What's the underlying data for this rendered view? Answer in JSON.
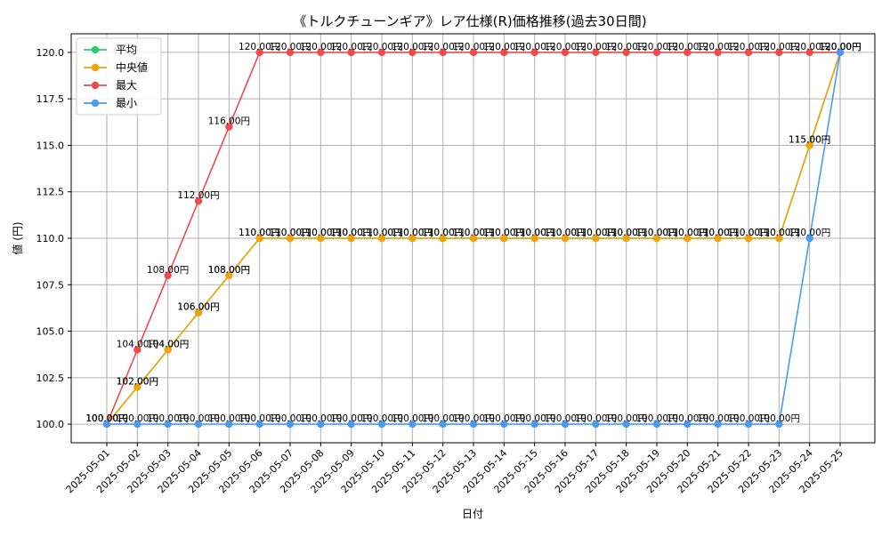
{
  "chart_data": {
    "type": "line",
    "title": "《トルクチューンギア》レア仕様(R)価格推移(過去30日間)",
    "xlabel": "日付",
    "ylabel": "値 (円)",
    "ylim": [
      99,
      121
    ],
    "yticks": [
      100.0,
      102.5,
      105.0,
      107.5,
      110.0,
      112.5,
      115.0,
      117.5,
      120.0
    ],
    "grid": true,
    "legend_position": "top-left",
    "categories": [
      "2025-05-01",
      "2025-05-02",
      "2025-05-03",
      "2025-05-04",
      "2025-05-05",
      "2025-05-06",
      "2025-05-07",
      "2025-05-08",
      "2025-05-09",
      "2025-05-10",
      "2025-05-11",
      "2025-05-12",
      "2025-05-13",
      "2025-05-14",
      "2025-05-15",
      "2025-05-16",
      "2025-05-17",
      "2025-05-18",
      "2025-05-19",
      "2025-05-20",
      "2025-05-21",
      "2025-05-22",
      "2025-05-23",
      "2025-05-24",
      "2025-05-25"
    ],
    "series": [
      {
        "name": "平均",
        "color": "#2ecc71",
        "values": [
          100,
          102,
          104,
          106,
          108,
          110,
          110,
          110,
          110,
          110,
          110,
          110,
          110,
          110,
          110,
          110,
          110,
          110,
          110,
          110,
          110,
          110,
          110,
          115,
          120
        ]
      },
      {
        "name": "中央値",
        "color": "#f0a30a",
        "values": [
          100,
          102,
          104,
          106,
          108,
          110,
          110,
          110,
          110,
          110,
          110,
          110,
          110,
          110,
          110,
          110,
          110,
          110,
          110,
          110,
          110,
          110,
          110,
          115,
          120
        ]
      },
      {
        "name": "最大",
        "color": "#ef4b4b",
        "values": [
          100,
          104,
          108,
          112,
          116,
          120,
          120,
          120,
          120,
          120,
          120,
          120,
          120,
          120,
          120,
          120,
          120,
          120,
          120,
          120,
          120,
          120,
          120,
          120,
          120
        ]
      },
      {
        "name": "最小",
        "color": "#4a9af0",
        "values": [
          100,
          100,
          100,
          100,
          100,
          100,
          100,
          100,
          100,
          100,
          100,
          100,
          100,
          100,
          100,
          100,
          100,
          100,
          100,
          100,
          100,
          100,
          100,
          110,
          120
        ]
      }
    ],
    "label_suffix": "円",
    "label_decimals": 2
  }
}
